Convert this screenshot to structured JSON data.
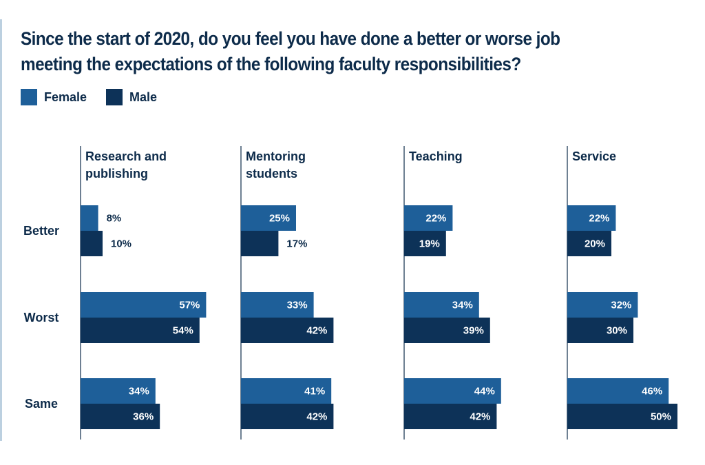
{
  "chart_data": {
    "type": "bar",
    "orientation": "horizontal",
    "title": "Since the start of 2020, do you feel you have done a better or worse job meeting the expectations of the following faculty responsibilities?",
    "legend_position": "top-left",
    "categories": [
      "Better",
      "Worst",
      "Same"
    ],
    "series": [
      {
        "name": "Female",
        "color": "#1e5f99"
      },
      {
        "name": "Male",
        "color": "#0d3258"
      }
    ],
    "panels": [
      {
        "name_lines": [
          "Research and",
          "publishing"
        ],
        "values": {
          "Female": [
            8,
            57,
            34
          ],
          "Male": [
            10,
            54,
            36
          ]
        },
        "labels": {
          "Female": [
            "8%",
            "57%",
            "34%"
          ],
          "Male": [
            "10%",
            "54%",
            "36%"
          ]
        }
      },
      {
        "name_lines": [
          "Mentoring",
          "students"
        ],
        "values": {
          "Female": [
            25,
            33,
            41
          ],
          "Male": [
            17,
            42,
            42
          ]
        },
        "labels": {
          "Female": [
            "25%",
            "33%",
            "41%"
          ],
          "Male": [
            "17%",
            "42%",
            "42%"
          ]
        }
      },
      {
        "name_lines": [
          "Teaching"
        ],
        "values": {
          "Female": [
            22,
            34,
            44
          ],
          "Male": [
            19,
            39,
            42
          ]
        },
        "labels": {
          "Female": [
            "22%",
            "34%",
            "44%"
          ],
          "Male": [
            "19%",
            "39%",
            "42%"
          ]
        }
      },
      {
        "name_lines": [
          "Service"
        ],
        "values": {
          "Female": [
            22,
            32,
            46
          ],
          "Male": [
            20,
            30,
            50
          ]
        },
        "labels": {
          "Female": [
            "22%",
            "32%",
            "46%"
          ],
          "Male": [
            "20%",
            "30%",
            "50%"
          ]
        }
      }
    ],
    "xlim": [
      0,
      60
    ],
    "value_unit": "%",
    "grid": false
  }
}
